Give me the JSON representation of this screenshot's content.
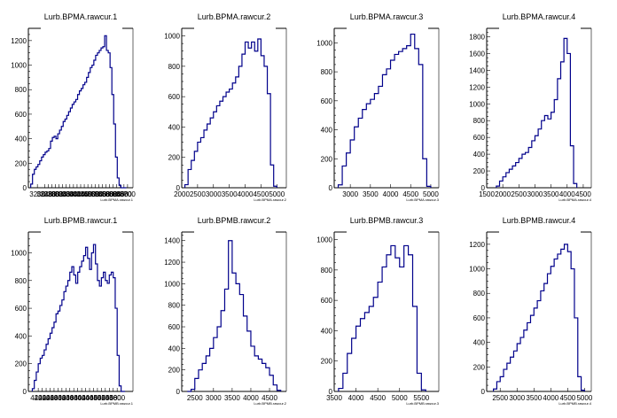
{
  "chart_data": [
    {
      "type": "bar",
      "title": "Lurb.BPMA.rawcur.1",
      "xlabel": "Lurb.BPMA.rawcur.1",
      "xlim": [
        3150,
        3730
      ],
      "ylim": [
        0,
        1300
      ],
      "xticks": [
        3200,
        3240,
        3260,
        3280,
        3300,
        3320,
        3340,
        3360,
        3380,
        3400,
        3420,
        3440,
        3460,
        3480,
        3500,
        3520,
        3540,
        3560,
        3580,
        3600,
        3620,
        3640,
        3660,
        3680,
        3700
      ],
      "xtick_labels": [
        "3200",
        "3240",
        "3260",
        "3280",
        "3300",
        "3320",
        "3340",
        "3360",
        "3380",
        "3400",
        "3420",
        "3440",
        "3460",
        "3480",
        "3500",
        "3520",
        "3540",
        "3560",
        "3580",
        "3600",
        "3620",
        "3640",
        "3660",
        "3680",
        "3700"
      ],
      "yticks": [
        0,
        200,
        400,
        600,
        800,
        1000,
        1200
      ],
      "x": [
        3168,
        3178,
        3188,
        3198,
        3208,
        3218,
        3228,
        3238,
        3248,
        3258,
        3268,
        3278,
        3288,
        3298,
        3308,
        3318,
        3328,
        3338,
        3348,
        3358,
        3368,
        3378,
        3388,
        3398,
        3408,
        3418,
        3428,
        3438,
        3448,
        3458,
        3468,
        3478,
        3488,
        3498,
        3508,
        3518,
        3528,
        3538,
        3548,
        3558,
        3568,
        3578,
        3588,
        3598,
        3608,
        3618,
        3628,
        3638,
        3648,
        3658,
        3668,
        3678,
        3688
      ],
      "values": [
        30,
        110,
        150,
        170,
        190,
        220,
        250,
        270,
        290,
        300,
        320,
        380,
        410,
        420,
        400,
        440,
        470,
        500,
        540,
        560,
        590,
        620,
        650,
        680,
        700,
        720,
        760,
        790,
        810,
        840,
        860,
        900,
        940,
        980,
        1000,
        1040,
        1080,
        1100,
        1120,
        1140,
        1150,
        1240,
        1120,
        1100,
        980,
        760,
        520,
        250,
        80,
        20,
        0,
        0,
        0
      ]
    },
    {
      "type": "bar",
      "title": "Lurb.BPMA.rawcur.2",
      "xlabel": "Lurb.BPMA.rawcur.2",
      "xlim": [
        2000,
        5300
      ],
      "ylim": [
        0,
        1050
      ],
      "xticks": [
        2000,
        2500,
        3000,
        3500,
        4000,
        4500,
        5000
      ],
      "xtick_labels": [
        "2000",
        "2500",
        "3000",
        "3500",
        "4000",
        "4500",
        "5000"
      ],
      "yticks": [
        0,
        200,
        400,
        600,
        800,
        1000
      ],
      "x": [
        2150,
        2250,
        2350,
        2450,
        2550,
        2650,
        2750,
        2850,
        2950,
        3050,
        3150,
        3250,
        3350,
        3450,
        3550,
        3650,
        3750,
        3850,
        3950,
        4050,
        4150,
        4250,
        4350,
        4450,
        4550,
        4650,
        4750,
        4850,
        4950
      ],
      "values": [
        20,
        120,
        180,
        240,
        300,
        330,
        380,
        420,
        460,
        500,
        540,
        570,
        600,
        630,
        650,
        690,
        730,
        800,
        880,
        960,
        920,
        960,
        900,
        980,
        870,
        800,
        620,
        150,
        10
      ]
    },
    {
      "type": "bar",
      "title": "Lurb.BPMA.rawcur.3",
      "xlabel": "Lurb.BPMA.rawcur.3",
      "xlim": [
        2600,
        5200
      ],
      "ylim": [
        0,
        1100
      ],
      "xticks": [
        3000,
        3500,
        4000,
        4500,
        5000
      ],
      "xtick_labels": [
        "3000",
        "3500",
        "4000",
        "4500",
        "5000"
      ],
      "yticks": [
        0,
        200,
        400,
        600,
        800,
        1000
      ],
      "x": [
        2750,
        2850,
        2950,
        3050,
        3150,
        3250,
        3350,
        3450,
        3550,
        3650,
        3750,
        3850,
        3950,
        4050,
        4150,
        4250,
        4350,
        4450,
        4550,
        4650,
        4750,
        4850,
        4950
      ],
      "values": [
        20,
        150,
        240,
        330,
        420,
        480,
        540,
        580,
        610,
        650,
        700,
        780,
        820,
        880,
        920,
        940,
        960,
        980,
        1060,
        960,
        850,
        200,
        10
      ]
    },
    {
      "type": "bar",
      "title": "Lurb.BPMA.rawcur.4",
      "xlabel": "Lurb.BPMA.rawcur.4",
      "xlim": [
        1500,
        4750
      ],
      "ylim": [
        0,
        1900
      ],
      "xticks": [
        1500,
        2000,
        2500,
        3000,
        3500,
        4000,
        4500
      ],
      "xtick_labels": [
        "1500",
        "2000",
        "2500",
        "3000",
        "3500",
        "4000",
        "4500"
      ],
      "yticks": [
        0,
        200,
        400,
        600,
        800,
        1000,
        1200,
        1400,
        1600,
        1800
      ],
      "x": [
        1850,
        1950,
        2050,
        2150,
        2250,
        2350,
        2450,
        2550,
        2650,
        2750,
        2850,
        2950,
        3050,
        3150,
        3250,
        3350,
        3450,
        3550,
        3650,
        3750,
        3850,
        3950,
        4050,
        4150,
        4250
      ],
      "values": [
        20,
        80,
        130,
        180,
        220,
        260,
        300,
        350,
        400,
        420,
        480,
        560,
        620,
        700,
        800,
        860,
        820,
        900,
        1050,
        1300,
        1500,
        1780,
        1600,
        500,
        50
      ]
    },
    {
      "type": "bar",
      "title": "Lurb.BPMB.rawcur.1",
      "xlabel": "Lurb.BPMB.rawcur.1",
      "xlim": [
        4150,
        4680
      ],
      "ylim": [
        0,
        1150
      ],
      "xticks": [
        4200,
        4220,
        4240,
        4260,
        4280,
        4300,
        4320,
        4340,
        4360,
        4380,
        4400,
        4420,
        4440,
        4460,
        4480,
        4500,
        4520,
        4540,
        4560,
        4580,
        4600
      ],
      "xtick_labels": [
        "4200",
        "4220",
        "4240",
        "4260",
        "4280",
        "4300",
        "4320",
        "4340",
        "4360",
        "4380",
        "4400",
        "4420",
        "4440",
        "4460",
        "4480",
        "4500",
        "4520",
        "4540",
        "4560",
        "4580",
        "4600"
      ],
      "yticks": [
        0,
        200,
        400,
        600,
        800,
        1000
      ],
      "x": [
        4175,
        4185,
        4195,
        4205,
        4215,
        4225,
        4235,
        4245,
        4255,
        4265,
        4275,
        4285,
        4295,
        4305,
        4315,
        4325,
        4335,
        4345,
        4355,
        4365,
        4375,
        4385,
        4395,
        4405,
        4415,
        4425,
        4435,
        4445,
        4455,
        4465,
        4475,
        4485,
        4495,
        4505,
        4515,
        4525,
        4535,
        4545,
        4555,
        4565,
        4575,
        4585,
        4595,
        4605,
        4615,
        4625,
        4635
      ],
      "values": [
        20,
        80,
        140,
        200,
        240,
        260,
        300,
        340,
        380,
        420,
        460,
        500,
        560,
        580,
        620,
        660,
        720,
        760,
        800,
        860,
        900,
        840,
        780,
        860,
        900,
        940,
        980,
        1040,
        960,
        880,
        1000,
        1060,
        920,
        800,
        760,
        820,
        860,
        800,
        780,
        840,
        860,
        820,
        600,
        260,
        40,
        0,
        0
      ]
    },
    {
      "type": "bar",
      "title": "Lurb.BPMB.rawcur.2",
      "xlabel": "Lurb.BPMB.rawcur.2",
      "xlim": [
        2150,
        4950
      ],
      "ylim": [
        0,
        1480
      ],
      "xticks": [
        2500,
        3000,
        3500,
        4000,
        4500
      ],
      "xtick_labels": [
        "2500",
        "3000",
        "3500",
        "4000",
        "4500"
      ],
      "yticks": [
        0,
        200,
        400,
        600,
        800,
        1000,
        1200,
        1400
      ],
      "x": [
        2350,
        2450,
        2550,
        2650,
        2750,
        2850,
        2950,
        3050,
        3150,
        3250,
        3350,
        3450,
        3550,
        3650,
        3750,
        3850,
        3950,
        4050,
        4150,
        4250,
        4350,
        4450,
        4550,
        4650,
        4750
      ],
      "values": [
        0,
        20,
        120,
        200,
        260,
        330,
        400,
        500,
        600,
        750,
        950,
        1400,
        1100,
        1000,
        900,
        700,
        560,
        420,
        330,
        300,
        260,
        220,
        150,
        60,
        10
      ]
    },
    {
      "type": "bar",
      "title": "Lurb.BPMB.rawcur.3",
      "xlabel": "Lurb.BPMB.rawcur.3",
      "xlim": [
        3500,
        5900
      ],
      "ylim": [
        0,
        1050
      ],
      "xticks": [
        3500,
        4000,
        4500,
        5000,
        5500
      ],
      "xtick_labels": [
        "3500",
        "4000",
        "4500",
        "5000",
        "5500"
      ],
      "yticks": [
        0,
        200,
        400,
        600,
        800,
        1000
      ],
      "x": [
        3650,
        3750,
        3850,
        3950,
        4050,
        4150,
        4250,
        4350,
        4450,
        4550,
        4650,
        4750,
        4850,
        4950,
        5050,
        5150,
        5250,
        5350,
        5450,
        5550
      ],
      "values": [
        20,
        120,
        250,
        350,
        430,
        480,
        520,
        560,
        620,
        720,
        820,
        900,
        960,
        880,
        820,
        960,
        900,
        560,
        120,
        10
      ]
    },
    {
      "type": "bar",
      "title": "Lurb.BPMB.rawcur.4",
      "xlabel": "Lurb.BPMB.rawcur.4",
      "xlim": [
        2100,
        5200
      ],
      "ylim": [
        0,
        1300
      ],
      "xticks": [
        2500,
        3000,
        3500,
        4000,
        4500,
        5000
      ],
      "xtick_labels": [
        "2500",
        "3000",
        "3500",
        "4000",
        "4500",
        "5000"
      ],
      "yticks": [
        0,
        200,
        400,
        600,
        800,
        1000,
        1200
      ],
      "x": [
        2350,
        2450,
        2550,
        2650,
        2750,
        2850,
        2950,
        3050,
        3150,
        3250,
        3350,
        3450,
        3550,
        3650,
        3750,
        3850,
        3950,
        4050,
        4150,
        4250,
        4350,
        4450,
        4550,
        4650,
        4750,
        4850,
        4950
      ],
      "values": [
        20,
        80,
        120,
        180,
        230,
        280,
        330,
        390,
        440,
        500,
        560,
        620,
        680,
        740,
        820,
        880,
        960,
        1020,
        1080,
        1120,
        1160,
        1200,
        1140,
        1000,
        600,
        120,
        10
      ]
    }
  ],
  "style": {
    "line_color": "#00008b",
    "axis_color": "#000000",
    "background": "#ffffff"
  }
}
